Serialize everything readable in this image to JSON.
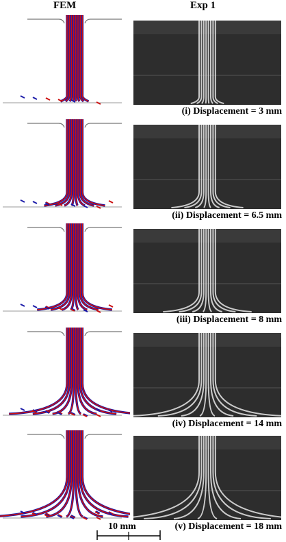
{
  "headers": {
    "left": "FEM",
    "right": "Exp 1"
  },
  "panels": [
    {
      "caption": "(i) Displacement = 3 mm",
      "displacement_mm": 3
    },
    {
      "caption": "(ii) Displacement = 6.5 mm",
      "displacement_mm": 6.5
    },
    {
      "caption": "(iii) Displacement = 8 mm",
      "displacement_mm": 8
    },
    {
      "caption": "(iv) Displacement = 14 mm",
      "displacement_mm": 14
    },
    {
      "caption": "(v) Displacement = 18 mm",
      "displacement_mm": 18
    }
  ],
  "scale_bar": {
    "label": "10 mm"
  },
  "colors": {
    "fiber_red": "#cc1010",
    "fiber_blue": "#1a1aa8",
    "photo_bg": "#2d2d2d",
    "fiber_white": "#e8e8e8"
  }
}
